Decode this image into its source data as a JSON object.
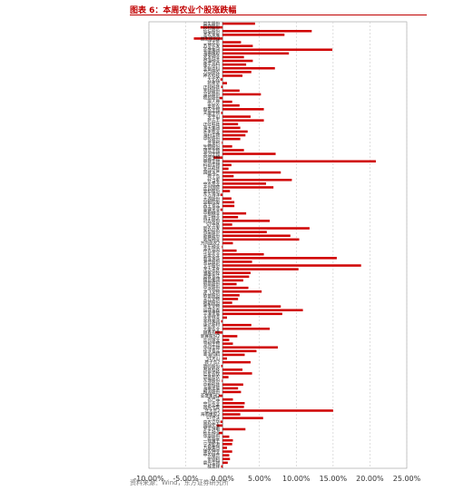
{
  "header": {
    "title": "图表 6：本周农业个股涨跌幅"
  },
  "footer": {
    "source": "资料来源：Wind，东方证券研究所"
  },
  "colors": {
    "bar": "#d00000",
    "grid": "#c8c8c8",
    "axis": "#666666"
  },
  "chart_data": {
    "type": "bar",
    "orientation": "horizontal",
    "xlim": [
      -10,
      25
    ],
    "xticks": [
      -10,
      -5,
      0,
      5,
      10,
      15,
      20,
      25
    ],
    "tick_format": "percent_2dp",
    "grid_x": true,
    "categories": [
      "益生股份",
      "民和股份",
      "仙坛股份",
      "圣农发展",
      "益生股份2",
      "北大荒",
      "苏垦农发",
      "亚盛集团",
      "海南橡胶",
      "农发种业",
      "登海种业",
      "隆平高科",
      "荃银高科",
      "万向德农",
      "神农科技",
      "大北农",
      "新希望",
      "正邦科技",
      "天邦股份",
      "温氏股份",
      "牧原股份",
      "唐人神",
      "金新农",
      "傲农生物",
      "天康生物",
      "罗牛山",
      "新五丰",
      "正虹科技",
      "海大集团",
      "禾丰牧业",
      "海利生物",
      "中牧股份",
      "普莱柯",
      "生物股份",
      "瑞普生物",
      "金河生物",
      "回盛生物",
      "申联生物",
      "科前生物",
      "天马科技",
      "国联水产",
      "獐子岛",
      "好当家",
      "中水渔业",
      "开创国际",
      "壹桥股份",
      "东方海洋",
      "大湖股份",
      "京粮控股",
      "西王食品",
      "金健米业",
      "中粮糖业",
      "南宁糖业",
      "冠农股份",
      "ST中基",
      "新农开发",
      "香梨股份",
      "新赛股份",
      "敦煌种业",
      "万向德农2",
      "丰乐种业",
      "神农基因",
      "华英农业",
      "春雪食品",
      "湘佳股份",
      "立华股份",
      "龙大美食",
      "雏鹰农牧",
      "益客食品",
      "播恩集团",
      "佩蒂股份",
      "中宠股份",
      "源飞宠物",
      "依依股份",
      "天元宠物",
      "路斯股份",
      "乖宝宠物",
      "福建金森",
      "平潭发展",
      "永安林业",
      "丰林集团",
      "康达新材",
      "大康农业",
      "顺鑫农业",
      "新赛股份2",
      "众兴菌业",
      "雪榕生物",
      "华绿生物",
      "佳沃食品",
      "粤海饲料",
      "ST天山",
      "獐子岛2",
      "晓鸣股份",
      "邦基科技",
      "巨星农牧",
      "京基智农",
      "东瑞股份",
      "中粮科技",
      "海南发展",
      "朗源股份",
      "亚盛集团2",
      "农产品",
      "中信农业",
      "国投中鲁",
      "北大荒2",
      "海南橡胶2",
      "ST佳沃",
      "中农立华",
      "国际实业",
      "罗平锌电",
      "秋乐种业",
      "华康股份",
      "一致魔芋",
      "宁波能源",
      "万辰集团",
      "康农种业",
      "中农联合",
      "安德利",
      "晨光生物",
      "桂发祥"
    ],
    "values": [
      4.4,
      -3.0,
      12.1,
      8.4,
      -3.9,
      2.5,
      4.1,
      14.9,
      9.0,
      2.9,
      4.1,
      3.2,
      7.1,
      3.9,
      2.7,
      -0.3,
      0.6,
      -0.2,
      2.3,
      5.2,
      -0.4,
      1.3,
      2.3,
      5.6,
      -0.2,
      3.8,
      5.6,
      2.1,
      2.4,
      3.4,
      3.1,
      2.4,
      -0.1,
      1.3,
      2.9,
      7.2,
      -1.2,
      20.8,
      1.2,
      0.8,
      7.9,
      1.5,
      9.4,
      5.9,
      6.9,
      1.0,
      -0.3,
      1.2,
      1.6,
      1.6,
      -0.3,
      3.2,
      2.1,
      6.4,
      1.3,
      11.8,
      6.0,
      9.2,
      10.4,
      1.4,
      -0.1,
      1.9,
      5.6,
      15.5,
      4.0,
      18.8,
      10.3,
      3.8,
      3.6,
      2.8,
      1.9,
      3.5,
      5.3,
      2.3,
      2.1,
      1.3,
      7.9,
      10.9,
      8.1,
      0.6,
      -0.2,
      3.9,
      6.4,
      -1.0,
      2.0,
      0.9,
      1.4,
      7.5,
      4.6,
      3.0,
      0.6,
      3.8,
      -0.2,
      2.7,
      4.0,
      0.8,
      -0.1,
      2.8,
      2.1,
      2.5,
      -0.5,
      1.4,
      3.0,
      2.9,
      15.0,
      2.4,
      5.5,
      -0.3,
      -0.8,
      3.1,
      -0.5,
      0.9,
      1.4,
      1.3,
      0.6,
      1.3,
      0.9,
      1.0,
      0.7,
      -0.2
    ]
  }
}
